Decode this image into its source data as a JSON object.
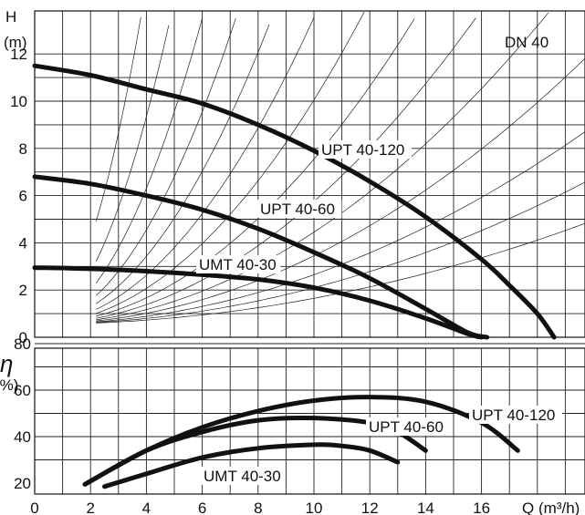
{
  "chart_data": [
    {
      "type": "line",
      "panel": "head",
      "title": "DN 40",
      "ylabel": "H",
      "yunit": "(m)",
      "xlim": [
        0,
        18.5
      ],
      "ylim": [
        0,
        12
      ],
      "yticks": [
        "0",
        "2",
        "4",
        "6",
        "8",
        "10",
        "12"
      ],
      "series": [
        {
          "name": "UPT 40-120",
          "x": [
            0,
            2,
            4,
            6,
            8,
            10,
            12,
            14,
            16,
            17,
            18,
            18.6
          ],
          "y": [
            11.5,
            11.1,
            10.5,
            9.9,
            9.0,
            7.9,
            6.6,
            5.1,
            3.3,
            2.2,
            1.0,
            0
          ]
        },
        {
          "name": "UPT 40-60",
          "x": [
            0,
            2,
            4,
            6,
            8,
            10,
            12,
            14,
            15.5,
            16.2
          ],
          "y": [
            6.8,
            6.5,
            6.0,
            5.4,
            4.6,
            3.6,
            2.5,
            1.2,
            0.2,
            0
          ]
        },
        {
          "name": "UMT 40-30",
          "x": [
            0,
            2,
            4,
            6,
            8,
            10,
            12,
            14,
            15.5,
            16.0
          ],
          "y": [
            2.95,
            2.9,
            2.8,
            2.65,
            2.45,
            2.1,
            1.55,
            0.8,
            0.15,
            0
          ]
        }
      ]
    },
    {
      "type": "line",
      "panel": "efficiency",
      "ylabel": "η",
      "yunit": "(%)",
      "xlabel": "Q",
      "xunit": "(m³/h)",
      "xlim": [
        0,
        18.5
      ],
      "ylim": [
        18,
        82
      ],
      "xticks": [
        "0",
        "2",
        "4",
        "6",
        "8",
        "10",
        "12",
        "14",
        "16"
      ],
      "yticks": [
        "20",
        "40",
        "60",
        "80"
      ],
      "series": [
        {
          "name": "UPT 40-120",
          "x": [
            1.8,
            4,
            6,
            8,
            10,
            12,
            14,
            16,
            17.3
          ],
          "y": [
            19.5,
            34,
            44,
            51,
            55.5,
            57,
            55,
            46,
            34
          ]
        },
        {
          "name": "UPT 40-60",
          "x": [
            1.8,
            4,
            6,
            8,
            10,
            12,
            13,
            14
          ],
          "y": [
            19.5,
            34,
            42,
            47,
            48,
            46,
            42,
            34
          ]
        },
        {
          "name": "UMT 40-30",
          "x": [
            2.5,
            4,
            6,
            8,
            10,
            11,
            12,
            13
          ],
          "y": [
            18.5,
            24,
            31,
            35,
            36.5,
            36,
            34,
            29
          ]
        }
      ]
    }
  ]
}
